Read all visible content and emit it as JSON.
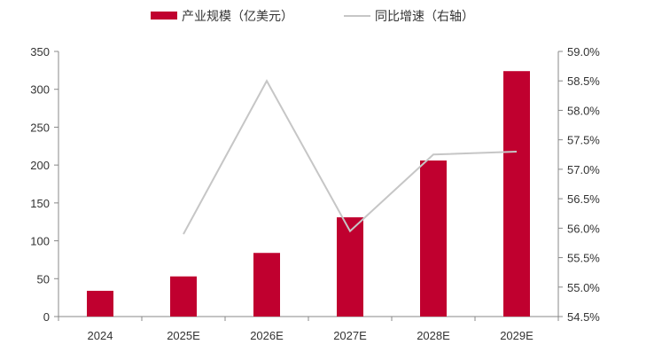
{
  "chart_data": {
    "type": "bar",
    "categories": [
      "2024",
      "2025E",
      "2026E",
      "2027E",
      "2028E",
      "2029E"
    ],
    "series": [
      {
        "name": "产业规模（亿美元）",
        "type": "bar",
        "axis": "left",
        "color": "#c0002f",
        "values": [
          34,
          53,
          84,
          131,
          206,
          324
        ]
      },
      {
        "name": "同比增速（右轴）",
        "type": "line",
        "axis": "right",
        "color": "#c6c6c6",
        "values": [
          null,
          55.9,
          58.5,
          55.95,
          57.25,
          57.3
        ]
      }
    ],
    "y_left": {
      "min": 0,
      "max": 350,
      "step": 50,
      "ticks": [
        "0",
        "50",
        "100",
        "150",
        "200",
        "250",
        "300",
        "350"
      ]
    },
    "y_right": {
      "min": 54.5,
      "max": 59.0,
      "step": 0.5,
      "ticks": [
        "54.5%",
        "55.0%",
        "55.5%",
        "56.0%",
        "56.5%",
        "57.0%",
        "57.5%",
        "58.0%",
        "58.5%",
        "59.0%"
      ]
    },
    "legend_position": "top",
    "grid": false
  }
}
